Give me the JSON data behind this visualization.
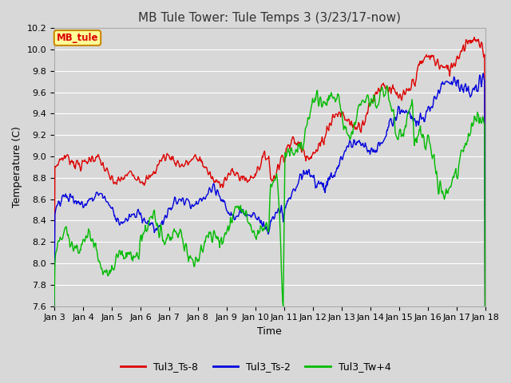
{
  "title": "MB Tule Tower: Tule Temps 3 (3/23/17-now)",
  "xlabel": "Time",
  "ylabel": "Temperature (C)",
  "ylim": [
    7.6,
    10.2
  ],
  "yticks": [
    7.6,
    7.8,
    8.0,
    8.2,
    8.4,
    8.6,
    8.8,
    9.0,
    9.2,
    9.4,
    9.6,
    9.8,
    10.0,
    10.2
  ],
  "xtick_labels": [
    "Jan 3",
    "Jan 4",
    "Jan 5",
    "Jan 6",
    "Jan 7",
    "Jan 8",
    "Jan 9",
    "Jan 10",
    "Jan 11",
    "Jan 12",
    "Jan 13",
    "Jan 14",
    "Jan 15",
    "Jan 16",
    "Jan 17",
    "Jan 18"
  ],
  "series": [
    {
      "name": "Tul3_Ts-8",
      "color": "#dd0000"
    },
    {
      "name": "Tul3_Ts-2",
      "color": "#0000dd"
    },
    {
      "name": "Tul3_Tw+4",
      "color": "#00bb00"
    }
  ],
  "legend_label": "MB_tule",
  "legend_bg": "#ffff99",
  "legend_border": "#cc8800",
  "bg_color": "#d8d8d8",
  "plot_bg": "#d8d8d8",
  "grid_color": "#ffffff",
  "title_fontsize": 11,
  "axis_fontsize": 9,
  "tick_fontsize": 8
}
